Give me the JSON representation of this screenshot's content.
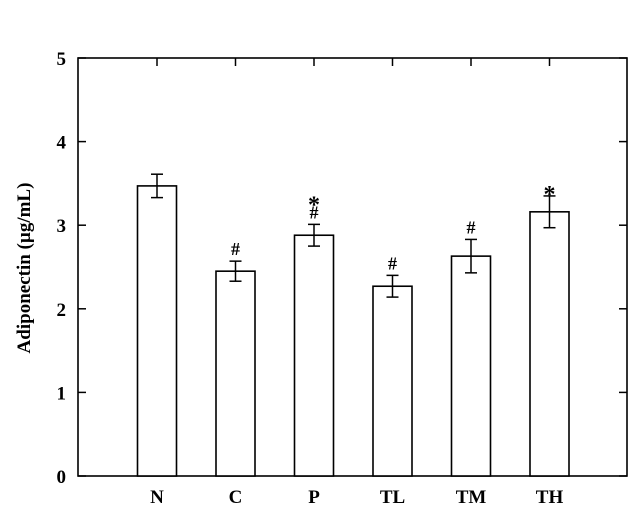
{
  "chart_data": {
    "type": "bar",
    "title": "",
    "xlabel": "",
    "ylabel": "Adiponectin (µg/mL)",
    "ylim": [
      0,
      5
    ],
    "yticks": [
      "0",
      "1",
      "2",
      "3",
      "4",
      "5"
    ],
    "categories": [
      "N",
      "C",
      "P",
      "TL",
      "TM",
      "TH"
    ],
    "values": [
      3.47,
      2.45,
      2.88,
      2.27,
      2.63,
      3.16
    ],
    "errors": [
      0.14,
      0.12,
      0.13,
      0.13,
      0.2,
      0.19
    ],
    "annotations": [
      [],
      [
        "#"
      ],
      [
        "*",
        "#"
      ],
      [
        "#"
      ],
      [
        "#"
      ],
      [
        "*"
      ]
    ],
    "grid": false,
    "colors": {
      "bar_fill": "#ffffff",
      "stroke": "#000000"
    }
  }
}
